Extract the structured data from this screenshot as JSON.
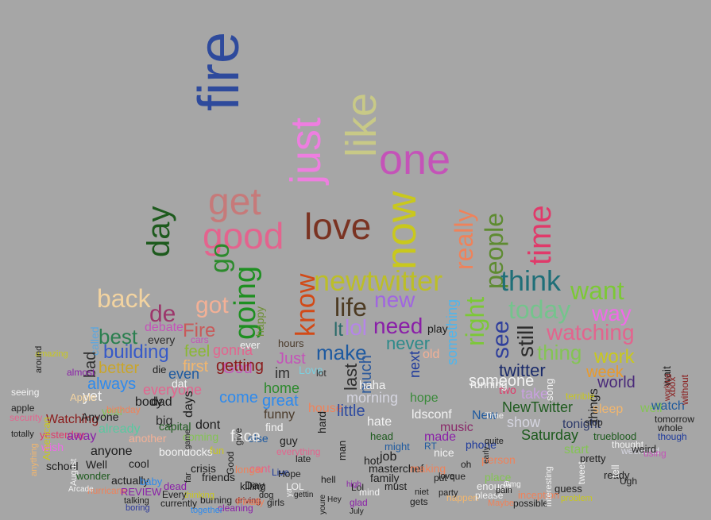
{
  "background_color": "#a6a6a6",
  "words": [
    {
      "text": "fire",
      "color": "#2e4a9c",
      "vertical": true
    },
    {
      "text": "like",
      "color": "#c8c987",
      "vertical": true
    },
    {
      "text": "just",
      "color": "#ee7ee0",
      "vertical": true
    },
    {
      "text": "one",
      "color": "#c453b8"
    },
    {
      "text": "now",
      "color": "#c9c81d",
      "vertical": true
    },
    {
      "text": "get",
      "color": "#c67a7a"
    },
    {
      "text": "love",
      "color": "#7a3322"
    },
    {
      "text": "day",
      "color": "#1d5a1d",
      "vertical": true
    },
    {
      "text": "good",
      "color": "#e3648e"
    },
    {
      "text": "time",
      "color": "#e03a6a",
      "vertical": true
    },
    {
      "text": "really",
      "color": "#ef825a",
      "vertical": true
    },
    {
      "text": "people",
      "color": "#5e8b31",
      "vertical": true
    },
    {
      "text": "going",
      "color": "#1e8f21",
      "vertical": true
    },
    {
      "text": "go",
      "color": "#2c8a2c",
      "vertical": true
    },
    {
      "text": "newtwitter",
      "color": "#bcbe28"
    },
    {
      "text": "think",
      "color": "#1f6f78"
    },
    {
      "text": "know",
      "color": "#d24a17",
      "vertical": true
    },
    {
      "text": "want",
      "color": "#7cc836"
    },
    {
      "text": "back",
      "color": "#f2d3a0"
    },
    {
      "text": "got",
      "color": "#f3b096"
    },
    {
      "text": "life",
      "color": "#4c3a22"
    },
    {
      "text": "new",
      "color": "#a066e0"
    },
    {
      "text": "today",
      "color": "#74c48c"
    },
    {
      "text": "way",
      "color": "#f06ae8"
    },
    {
      "text": "de",
      "color": "#9c366b"
    },
    {
      "text": "happy",
      "color": "#6d8f34",
      "vertical": true
    },
    {
      "text": "right",
      "color": "#7cc836",
      "vertical": true
    },
    {
      "text": "see",
      "color": "#2f3f9c",
      "vertical": true
    },
    {
      "text": "still",
      "color": "#2d2d2d",
      "vertical": true
    },
    {
      "text": "something",
      "color": "#4db6ee",
      "vertical": true
    },
    {
      "text": "need",
      "color": "#8a1fa8"
    },
    {
      "text": "lol",
      "color": "#b585e8"
    },
    {
      "text": "lt",
      "color": "#2a6b6a"
    },
    {
      "text": "watching",
      "color": "#e3648e"
    },
    {
      "text": "best",
      "color": "#2a7f4f"
    },
    {
      "text": "Fire",
      "color": "#c85a5a"
    },
    {
      "text": "debate",
      "color": "#c453b8"
    },
    {
      "text": "every",
      "color": "#2d2d2d"
    },
    {
      "text": "called",
      "color": "#5aa6e0",
      "vertical": true
    },
    {
      "text": "play",
      "color": "#1d1d1d"
    },
    {
      "text": "never",
      "color": "#2d8a8a"
    },
    {
      "text": "building",
      "color": "#3659c8"
    },
    {
      "text": "feel",
      "color": "#8ab832"
    },
    {
      "text": "gonna",
      "color": "#e3648e"
    },
    {
      "text": "hours",
      "color": "#4a3a2a"
    },
    {
      "text": "make",
      "color": "#1e5aa0"
    },
    {
      "text": "thing",
      "color": "#84c454"
    },
    {
      "text": "work",
      "color": "#c9c81d"
    },
    {
      "text": "bad",
      "color": "#2d2d2d",
      "vertical": true
    },
    {
      "text": "better",
      "color": "#c9a52b"
    },
    {
      "text": "first",
      "color": "#f2b66d"
    },
    {
      "text": "God",
      "color": "#c453b8"
    },
    {
      "text": "getting",
      "color": "#8a1a1a"
    },
    {
      "text": "Just",
      "color": "#c453b8"
    },
    {
      "text": "last",
      "color": "#2d2d2d",
      "vertical": true
    },
    {
      "text": "much",
      "color": "#2d5a9c",
      "vertical": true
    },
    {
      "text": "next",
      "color": "#1e3a9c",
      "vertical": true
    },
    {
      "text": "old",
      "color": "#f3b096"
    },
    {
      "text": "twitter",
      "color": "#1a2a6a"
    },
    {
      "text": "week",
      "color": "#ea9a2a"
    },
    {
      "text": "die",
      "color": "#1d1d1d"
    },
    {
      "text": "even",
      "color": "#1e5aa0"
    },
    {
      "text": "im",
      "color": "#2d2d2d"
    },
    {
      "text": "Love",
      "color": "#7ad0e0"
    },
    {
      "text": "someone",
      "color": "#f2f2f2"
    },
    {
      "text": "world",
      "color": "#4a2a7a"
    },
    {
      "text": "always",
      "color": "#2d8aee"
    },
    {
      "text": "everyone",
      "color": "#e3648e"
    },
    {
      "text": "home",
      "color": "#2c8a2c"
    },
    {
      "text": "morning",
      "color": "#d5d5e0"
    },
    {
      "text": "two",
      "color": "#e03a6a"
    },
    {
      "text": "take",
      "color": "#c9a0e0"
    },
    {
      "text": "things",
      "color": "#1d1d1d",
      "vertical": true
    },
    {
      "text": "well",
      "color": "#84c454"
    },
    {
      "text": "wait",
      "color": "#1d1d1d",
      "vertical": true
    },
    {
      "text": "xbox",
      "color": "#8a1a1a",
      "vertical": true
    },
    {
      "text": "yet",
      "color": "#f2f2f2"
    },
    {
      "text": "come",
      "color": "#2d8aee"
    },
    {
      "text": "great",
      "color": "#2d8aee"
    },
    {
      "text": "hope",
      "color": "#3a8a3a"
    },
    {
      "text": "NewTwitter",
      "color": "#1e5a1e"
    },
    {
      "text": "sleep",
      "color": "#f2b66d"
    },
    {
      "text": "watch",
      "color": "#1e5a9c"
    },
    {
      "text": "year",
      "color": "#84c454"
    },
    {
      "text": "big",
      "color": "#2d2d2d"
    },
    {
      "text": "days",
      "color": "#1d1d1d",
      "vertical": true
    },
    {
      "text": "funny",
      "color": "#4a3a2a"
    },
    {
      "text": "house",
      "color": "#ef825a"
    },
    {
      "text": "little",
      "color": "#2d4aa0"
    },
    {
      "text": "ldsconf",
      "color": "#f2f2f2"
    },
    {
      "text": "New",
      "color": "#1e5aa0"
    },
    {
      "text": "show",
      "color": "#d5d5e0"
    },
    {
      "text": "tonight",
      "color": "#2d3a6a"
    },
    {
      "text": "tomorrow",
      "color": "#1d1d1d"
    },
    {
      "text": "whole",
      "color": "#1d1d1d"
    },
    {
      "text": "Watching",
      "color": "#8a1a1a"
    },
    {
      "text": "already",
      "color": "#5ac8a0"
    },
    {
      "text": "capital",
      "color": "#1d5a1d"
    },
    {
      "text": "dont",
      "color": "#1d1d1d"
    },
    {
      "text": "find",
      "color": "#f2f2f2"
    },
    {
      "text": "hate",
      "color": "#f2f2f2"
    },
    {
      "text": "music",
      "color": "#8a2a6a"
    },
    {
      "text": "Saturday",
      "color": "#1d5a1d"
    },
    {
      "text": "trueblood",
      "color": "#1d5a1d"
    },
    {
      "text": "though",
      "color": "#1e3a9c"
    },
    {
      "text": "yesterday",
      "color": "#e03a6a"
    },
    {
      "text": "away",
      "color": "#8a1fa8"
    },
    {
      "text": "another",
      "color": "#f3b096"
    },
    {
      "text": "coming",
      "color": "#84c454"
    },
    {
      "text": "else",
      "color": "#1e5aa0"
    },
    {
      "text": "guy",
      "color": "#1d1d1d"
    },
    {
      "text": "head",
      "color": "#1d5a1d"
    },
    {
      "text": "made",
      "color": "#8a1fa8"
    },
    {
      "text": "phone",
      "color": "#1e3a9c"
    },
    {
      "text": "start",
      "color": "#84c454"
    },
    {
      "text": "thought",
      "color": "#f2f2f2"
    },
    {
      "text": "wish",
      "color": "#f06ae8"
    },
    {
      "text": "anyone",
      "color": "#1d1d1d"
    },
    {
      "text": "boondocks",
      "color": "#f2f2f2"
    },
    {
      "text": "everything",
      "color": "#e3648e"
    },
    {
      "text": "job",
      "color": "#1d1d1d"
    },
    {
      "text": "nice",
      "color": "#f2f2f2"
    },
    {
      "text": "person",
      "color": "#ef825a"
    },
    {
      "text": "pretty",
      "color": "#1d1d1d"
    },
    {
      "text": "weekend",
      "color": "#d5d5e0"
    },
    {
      "text": "Well",
      "color": "#1d1d1d"
    },
    {
      "text": "cool",
      "color": "#1d1d1d"
    },
    {
      "text": "crisis",
      "color": "#1d1d1d"
    },
    {
      "text": "friends",
      "color": "#1d1d1d"
    },
    {
      "text": "family",
      "color": "#1d1d1d"
    },
    {
      "text": "masterchef",
      "color": "#1d1d1d"
    },
    {
      "text": "making",
      "color": "#ef825a"
    },
    {
      "text": "place",
      "color": "#84c454"
    },
    {
      "text": "ready",
      "color": "#1d1d1d"
    },
    {
      "text": "school",
      "color": "#1d1d1d"
    },
    {
      "text": "wonder",
      "color": "#1d5a1d"
    },
    {
      "text": "actually",
      "color": "#1d1d1d"
    },
    {
      "text": "baby",
      "color": "#2d8aee"
    },
    {
      "text": "dead",
      "color": "#8a1fa8"
    },
    {
      "text": "cant",
      "color": "#e3648e"
    },
    {
      "text": "Day",
      "color": "#1d1d1d"
    },
    {
      "text": "enough",
      "color": "#f2f2f2"
    },
    {
      "text": "guess",
      "color": "#1d1d1d"
    },
    {
      "text": "hurricane",
      "color": "#ef825a"
    },
    {
      "text": "REVIEW",
      "color": "#8a1fa8"
    },
    {
      "text": "talking",
      "color": "#1d1d1d"
    },
    {
      "text": "boring",
      "color": "#2d3a9c"
    },
    {
      "text": "currently",
      "color": "#1d1d1d"
    },
    {
      "text": "burning",
      "color": "#1d1d1d"
    },
    {
      "text": "cleaning",
      "color": "#8a1fa8"
    },
    {
      "text": "driving",
      "color": "#8a1a1a"
    },
    {
      "text": "girls",
      "color": "#1d1d1d"
    },
    {
      "text": "glad",
      "color": "#8a1fa8"
    },
    {
      "text": "gets",
      "color": "#1d1d1d"
    },
    {
      "text": "happen",
      "color": "#f2b66d"
    },
    {
      "text": "Maybe",
      "color": "#ef825a"
    },
    {
      "text": "possible",
      "color": "#1d1d1d"
    },
    {
      "text": "problem",
      "color": "#c9c81d"
    },
    {
      "text": "seeing",
      "color": "#f2f2f2"
    },
    {
      "text": "security",
      "color": "#e3648e"
    },
    {
      "text": "totally",
      "color": "#1d1d1d"
    },
    {
      "text": "apple",
      "color": "#1d1d1d"
    },
    {
      "text": "almost",
      "color": "#8a1fa8"
    },
    {
      "text": "Apple",
      "color": "#f2d3a0"
    },
    {
      "text": "amazing",
      "color": "#c9c81d"
    },
    {
      "text": "around",
      "color": "#1d1d1d",
      "vertical": true
    },
    {
      "text": "American",
      "color": "#c9c81d",
      "vertical": true
    },
    {
      "text": "anything",
      "color": "#f2b66d",
      "vertical": true
    },
    {
      "text": "August",
      "color": "#f2f2f2",
      "vertical": true
    },
    {
      "text": "Arcade",
      "color": "#f2f2f2"
    },
    {
      "text": "Anyone",
      "color": "#1d1d1d"
    },
    {
      "text": "birthday",
      "color": "#ef825a"
    },
    {
      "text": "body",
      "color": "#1d1d1d"
    },
    {
      "text": "cars",
      "color": "#c453b8"
    },
    {
      "text": "dad",
      "color": "#1d1d1d"
    },
    {
      "text": "dat",
      "color": "#f2f2f2"
    },
    {
      "text": "ever",
      "color": "#f2f2f2"
    },
    {
      "text": "face",
      "color": "#f2f2f2"
    },
    {
      "text": "fun",
      "color": "#c9c81d"
    },
    {
      "text": "hard",
      "color": "#1d1d1d",
      "vertical": true
    },
    {
      "text": "hot",
      "color": "#1d1d1d"
    },
    {
      "text": "hell",
      "color": "#1d1d1d"
    },
    {
      "text": "Lol",
      "color": "#1d1d1d"
    },
    {
      "text": "LOL",
      "color": "#f2f2f2"
    },
    {
      "text": "late",
      "color": "#1d1d1d"
    },
    {
      "text": "Live",
      "color": "#1e3a9c"
    },
    {
      "text": "Hope",
      "color": "#1d1d1d"
    },
    {
      "text": "high",
      "color": "#8a1fa8"
    },
    {
      "text": "haha",
      "color": "#f2f2f2"
    },
    {
      "text": "lot",
      "color": "#2d2d2d"
    },
    {
      "text": "man",
      "color": "#1d1d1d",
      "vertical": true
    },
    {
      "text": "mind",
      "color": "#f2f2f2"
    },
    {
      "text": "must",
      "color": "#1d1d1d"
    },
    {
      "text": "might",
      "color": "#1e5aa0"
    },
    {
      "text": "niet",
      "color": "#1d1d1d"
    },
    {
      "text": "oh",
      "color": "#1d1d1d"
    },
    {
      "text": "please",
      "color": "#f2f2f2"
    },
    {
      "text": "party",
      "color": "#1d1d1d"
    },
    {
      "text": "put",
      "color": "#1d1d1d"
    },
    {
      "text": "que",
      "color": "#1d1d1d"
    },
    {
      "text": "RT",
      "color": "#1e5aa0"
    },
    {
      "text": "running",
      "color": "#f2f2f2"
    },
    {
      "text": "song",
      "color": "#f2f2f2",
      "vertical": true
    },
    {
      "text": "stop",
      "color": "#1d1d1d"
    },
    {
      "text": "tell",
      "color": "#f2f2f2",
      "vertical": true
    },
    {
      "text": "terrible",
      "color": "#c9c81d"
    },
    {
      "text": "Time",
      "color": "#f2f2f2"
    },
    {
      "text": "tweet",
      "color": "#f2f2f2",
      "vertical": true
    },
    {
      "text": "Ugh",
      "color": "#1d1d1d"
    },
    {
      "text": "using",
      "color": "#c453b8"
    },
    {
      "text": "weird",
      "color": "#1d1d1d"
    },
    {
      "text": "without",
      "color": "#8a1a1a",
      "vertical": true
    },
    {
      "text": "working",
      "color": "#8a1a1a",
      "vertical": true
    },
    {
      "text": "ya",
      "color": "#f2f2f2",
      "vertical": true
    },
    {
      "text": "youre",
      "color": "#1d1d1d",
      "vertical": true
    },
    {
      "text": "inception",
      "color": "#ef825a"
    },
    {
      "text": "interesting",
      "color": "#f2f2f2",
      "vertical": true
    },
    {
      "text": "thinking",
      "color": "#c9c81d"
    },
    {
      "text": "together",
      "color": "#2d8aee"
    },
    {
      "text": "Every",
      "color": "#1d1d1d"
    },
    {
      "text": "Finally",
      "color": "#ef825a"
    },
    {
      "text": "dog",
      "color": "#1d1d1d"
    },
    {
      "text": "gettin",
      "color": "#1d1d1d"
    },
    {
      "text": "Hey",
      "color": "#1d1d1d"
    },
    {
      "text": "July",
      "color": "#1d1d1d"
    },
    {
      "text": "killing",
      "color": "#1d1d1d"
    },
    {
      "text": "longer",
      "color": "#ef825a"
    },
    {
      "text": "give",
      "color": "#1d1d1d",
      "vertical": true
    },
    {
      "text": "Good",
      "color": "#1d1d1d",
      "vertical": true
    },
    {
      "text": "far",
      "color": "#1d1d1d",
      "vertical": true
    },
    {
      "text": "game",
      "color": "#1d1d1d",
      "vertical": true
    },
    {
      "text": "early",
      "color": "#1d1d1d",
      "vertical": true
    },
    {
      "text": "love",
      "color": "#1d1d1d"
    },
    {
      "text": "pain",
      "color": "#1d1d1d"
    },
    {
      "text": "Omg",
      "color": "#f2f2f2"
    },
    {
      "text": "quite",
      "color": "#1d1d1d"
    },
    {
      "text": "spill",
      "color": "#1d1d1d"
    },
    {
      "text": "said",
      "color": "#1d1d1d"
    }
  ]
}
